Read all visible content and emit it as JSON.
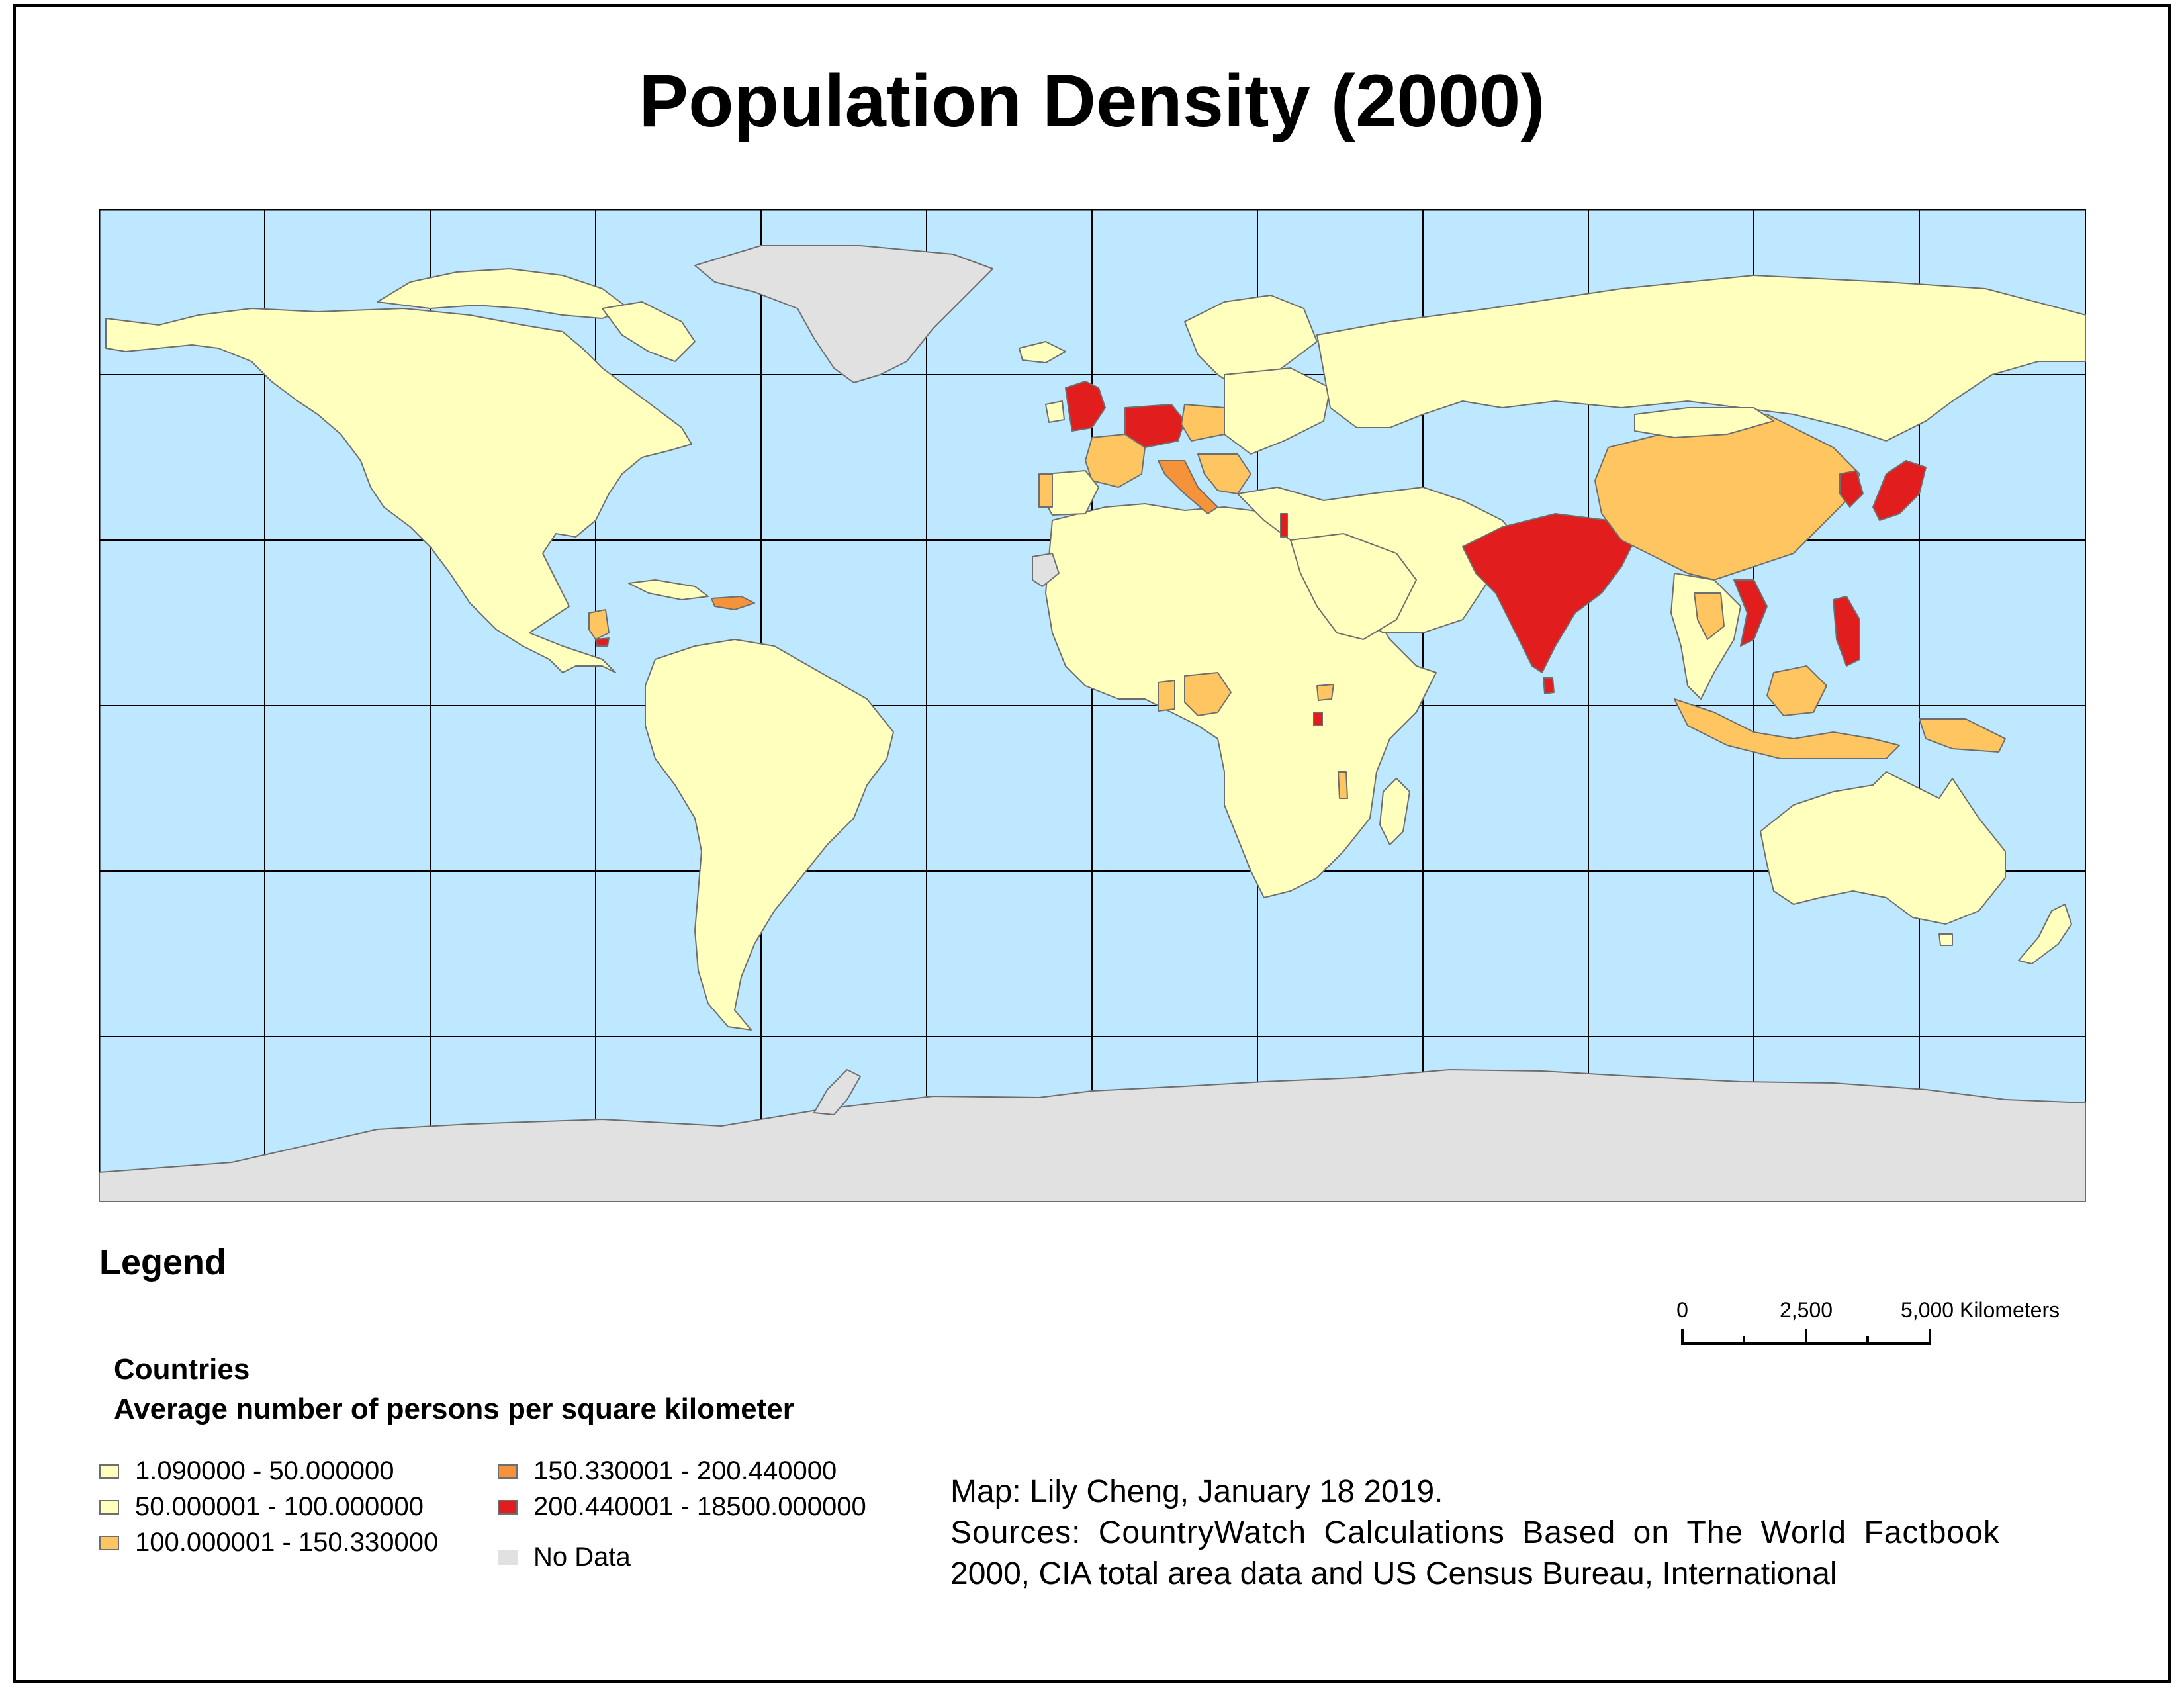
{
  "title": "Population Density (2000)",
  "legend": {
    "heading": "Legend",
    "layer_name": "Countries",
    "field_name": "Average number of persons per square kilometer",
    "classes": [
      {
        "label": "1.090000 - 50.000000",
        "color": "#ffffbe"
      },
      {
        "label": "50.000001 - 100.000000",
        "color": "#ffffbe"
      },
      {
        "label": "100.000001 - 150.330000",
        "color": "#ffc561"
      },
      {
        "label": "150.330001 - 200.440000",
        "color": "#f5933a"
      },
      {
        "label": "200.440001 - 18500.000000",
        "color": "#e21d1d"
      },
      {
        "label": "No Data",
        "color": "#e1e1e1"
      }
    ]
  },
  "scale_bar": {
    "labels": [
      "0",
      "2,500",
      "5,000 Kilometers"
    ]
  },
  "credits": {
    "line1": "Map: Lily Cheng, January 18 2019.",
    "line2": "Sources: CountryWatch Calculations Based on The World Factbook",
    "line3": "2000, CIA total area data and US Census Bureau, International"
  },
  "map_colors": {
    "ocean": "#bee8ff",
    "outline": "#6e6e6e",
    "graticule": "#000000"
  }
}
